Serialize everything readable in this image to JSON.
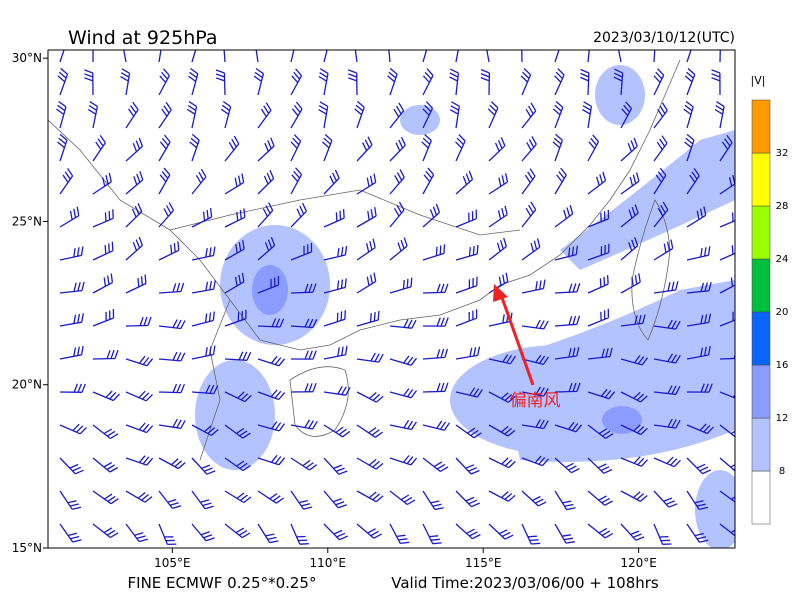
{
  "header": {
    "title": "Wind at 925hPa",
    "time": "2023/03/10/12(UTC)"
  },
  "map": {
    "lonlim": [
      101,
      123.1
    ],
    "latlim": [
      15,
      30.25
    ],
    "lon_ticks": [
      {
        "value": 105,
        "label": "105°E"
      },
      {
        "value": 110,
        "label": "110°E"
      },
      {
        "value": 115,
        "label": "115°E"
      },
      {
        "value": 120,
        "label": "120°E"
      }
    ],
    "lat_ticks": [
      {
        "value": 15,
        "label": "15°N"
      },
      {
        "value": 20,
        "label": "20°N"
      },
      {
        "value": 25,
        "label": "25°N"
      },
      {
        "value": 30,
        "label": "30°N"
      }
    ],
    "annotation": "偏南风"
  },
  "colorbar": {
    "label": "|V|",
    "levels": [
      8,
      12,
      16,
      20,
      24,
      28,
      32
    ],
    "colors": [
      "#ffffff",
      "#b3c3ff",
      "#8a9cff",
      "#0a64ff",
      "#00bf3c",
      "#99ff00",
      "#ffff00",
      "#ff9900"
    ]
  },
  "footer": {
    "model": "FINE ECMWF 0.25°*0.25°",
    "valid": "Valid Time:2023/03/06/00 + 108hrs"
  }
}
